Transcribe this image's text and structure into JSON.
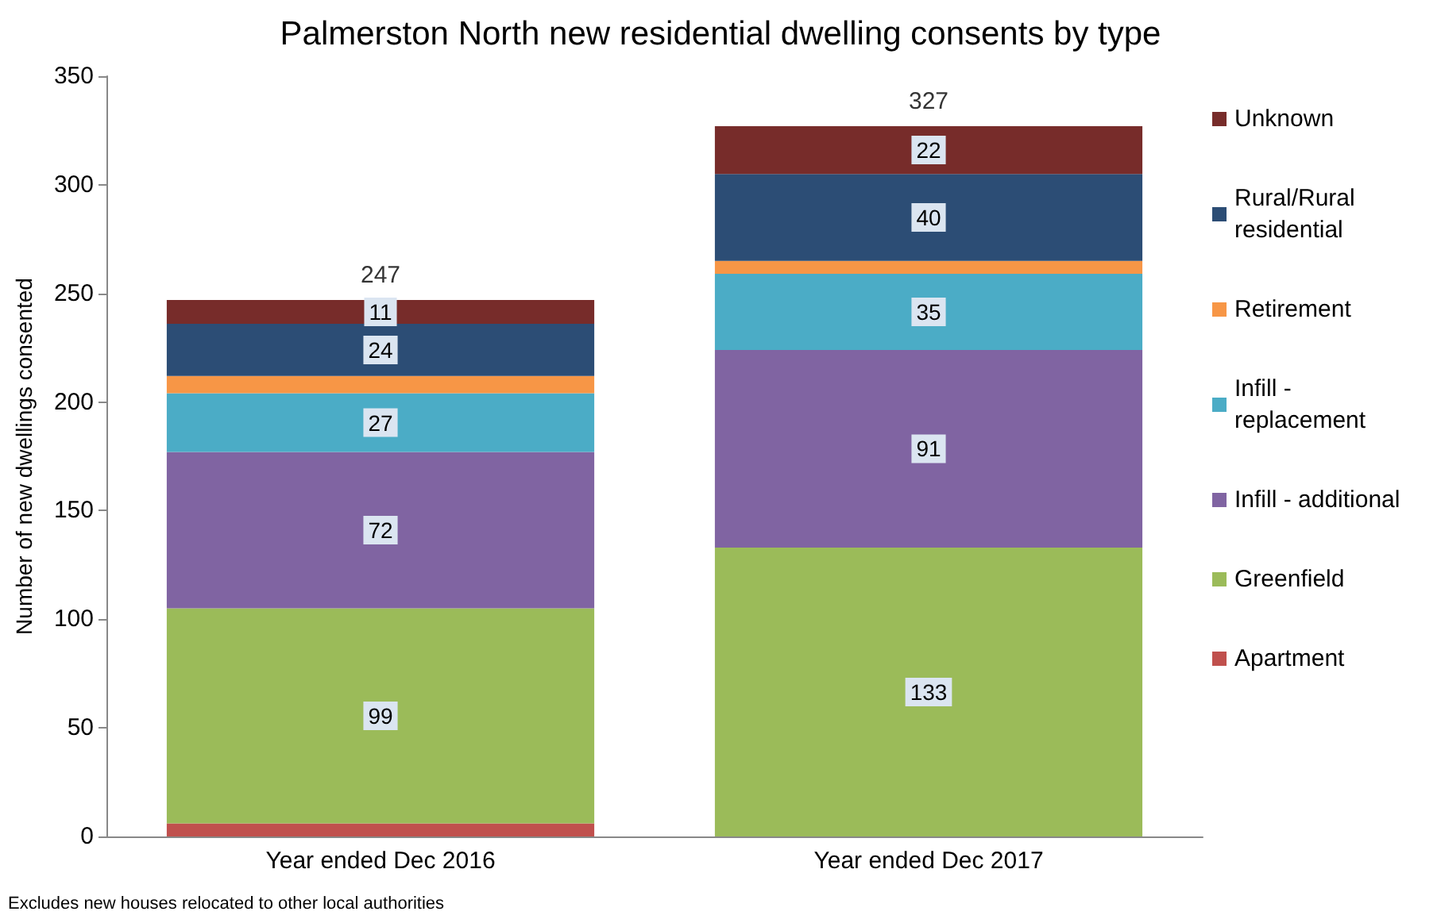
{
  "chart_data": {
    "type": "bar",
    "title": "Palmerston North new residential dwelling consents by type",
    "ylabel": "Number of new dwellings consented",
    "categories": [
      "Year ended Dec 2016",
      "Year ended Dec 2017"
    ],
    "stacked": true,
    "series": [
      {
        "name": "Apartment",
        "color": "#c0504d",
        "values": [
          6,
          0
        ],
        "value_labels": [
          null,
          null
        ]
      },
      {
        "name": "Greenfield",
        "color": "#9bbb59",
        "values": [
          99,
          133
        ],
        "value_labels": [
          "99",
          "133"
        ]
      },
      {
        "name": "Infill - additional",
        "color": "#8064a2",
        "values": [
          72,
          91
        ],
        "value_labels": [
          "72",
          "91"
        ]
      },
      {
        "name": "Infill - replacement",
        "color": "#4bacc6",
        "values": [
          27,
          35
        ],
        "value_labels": [
          "27",
          "35"
        ]
      },
      {
        "name": "Retirement",
        "color": "#f79646",
        "values": [
          8,
          6
        ],
        "value_labels": [
          null,
          null
        ]
      },
      {
        "name": "Rural/Rural residential",
        "color": "#2c4d75",
        "values": [
          24,
          40
        ],
        "value_labels": [
          "24",
          "40"
        ]
      },
      {
        "name": "Unknown",
        "color": "#772c2a",
        "values": [
          11,
          22
        ],
        "value_labels": [
          "11",
          "22"
        ]
      }
    ],
    "totals": [
      "247",
      "327"
    ],
    "ylim": [
      0,
      350
    ],
    "yticks": [
      0,
      50,
      100,
      150,
      200,
      250,
      300,
      350
    ],
    "grid": false,
    "legend": "right",
    "annotations": [
      "Excludes new houses relocated to other local authorities"
    ]
  }
}
